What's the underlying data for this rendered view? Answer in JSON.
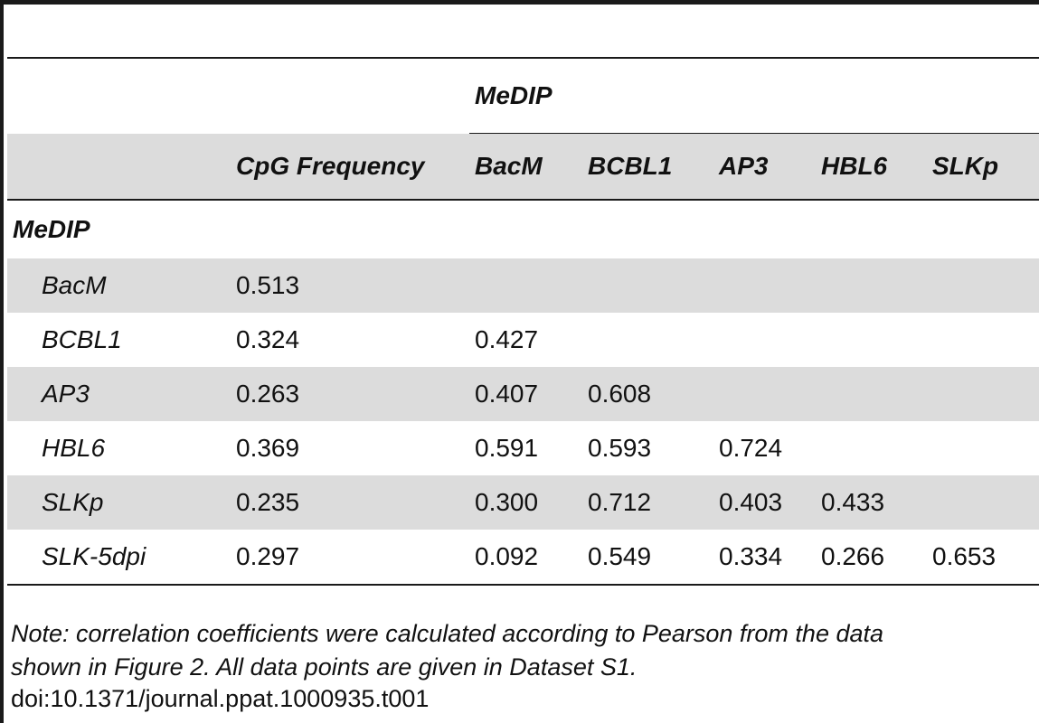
{
  "table": {
    "group_header": "MeDIP",
    "columns": [
      "",
      "CpG Frequency",
      "BacM",
      "BCBL1",
      "AP3",
      "HBL6",
      "SLKp"
    ],
    "section_label": "MeDIP",
    "rows": [
      {
        "label": "BacM",
        "values": [
          "0.513",
          "",
          "",
          "",
          "",
          ""
        ]
      },
      {
        "label": "BCBL1",
        "values": [
          "0.324",
          "0.427",
          "",
          "",
          "",
          ""
        ]
      },
      {
        "label": "AP3",
        "values": [
          "0.263",
          "0.407",
          "0.608",
          "",
          "",
          ""
        ]
      },
      {
        "label": "HBL6",
        "values": [
          "0.369",
          "0.591",
          "0.593",
          "0.724",
          "",
          ""
        ]
      },
      {
        "label": "SLKp",
        "values": [
          "0.235",
          "0.300",
          "0.712",
          "0.403",
          "0.433",
          ""
        ]
      },
      {
        "label": "SLK-5dpi",
        "values": [
          "0.297",
          "0.092",
          "0.549",
          "0.334",
          "0.266",
          "0.653"
        ]
      }
    ]
  },
  "note_line1": "Note: correlation coefficients were calculated according to Pearson from the data",
  "note_line2": "shown in Figure 2. All data points are given in Dataset S1.",
  "doi": "doi:10.1371/journal.ppat.1000935.t001"
}
